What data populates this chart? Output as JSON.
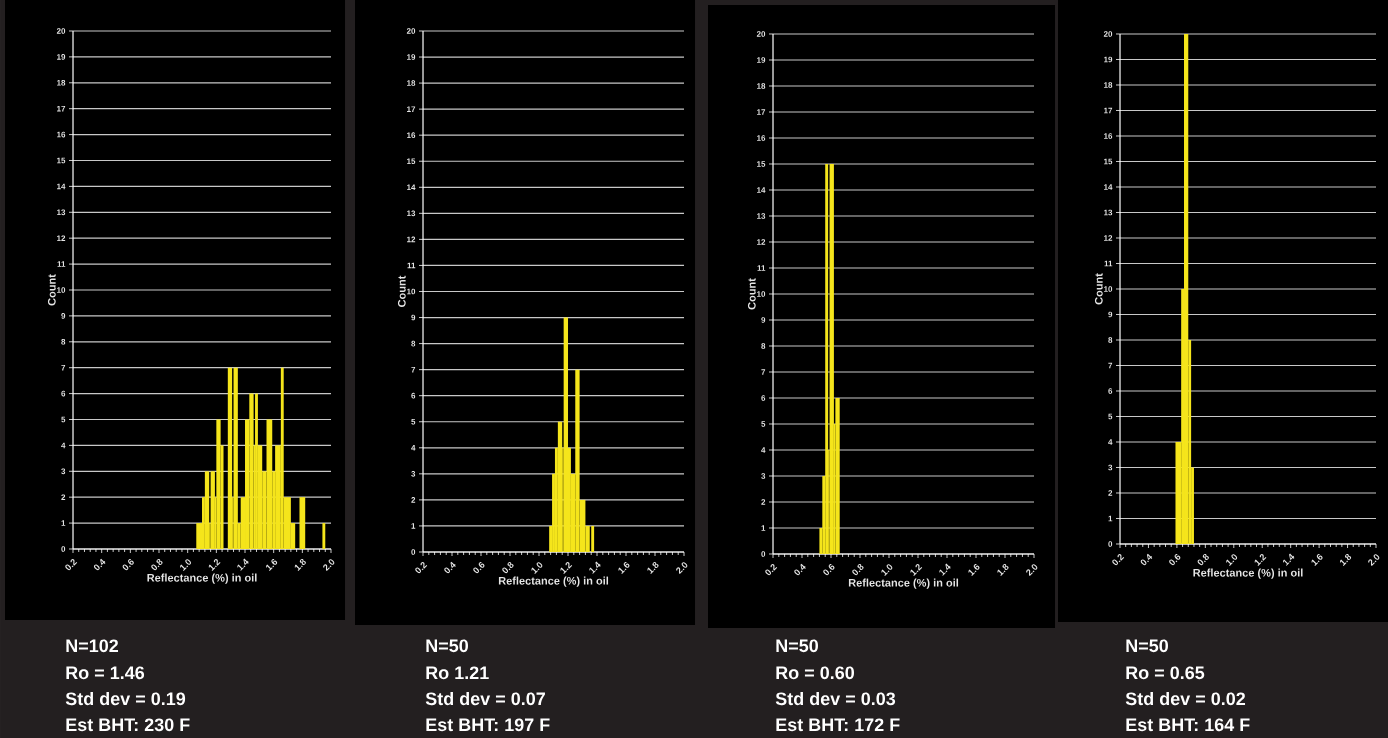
{
  "chart_data": [
    {
      "type": "histogram",
      "xlabel": "Reflectance (%) in oil",
      "ylabel": "Count",
      "color": "#f5e51b",
      "grid": "y",
      "xlim": [
        0.2,
        2.0
      ],
      "ylim": [
        0,
        20
      ],
      "xticks": [
        {
          "value": 0.2,
          "label": "0.2"
        },
        {
          "value": 0.4,
          "label": "0.4"
        },
        {
          "value": 0.6,
          "label": "0.6"
        },
        {
          "value": 0.8,
          "label": "0.8"
        },
        {
          "value": 1.0,
          "label": "1.0"
        },
        {
          "value": 1.2,
          "label": "1.2"
        },
        {
          "value": 1.4,
          "label": "1.4"
        },
        {
          "value": 1.6,
          "label": "1.6"
        },
        {
          "value": 1.8,
          "label": "1.8"
        },
        {
          "value": 2.0,
          "label": "2.0"
        }
      ],
      "yticks": [
        0,
        1,
        2,
        3,
        4,
        5,
        6,
        7,
        8,
        9,
        10,
        11,
        12,
        13,
        14,
        15,
        16,
        17,
        18,
        19,
        20
      ],
      "bins": [
        1.06,
        1.1,
        1.12,
        1.15,
        1.16,
        1.19,
        1.2,
        1.23,
        1.25,
        1.28,
        1.31,
        1.32,
        1.35,
        1.37,
        1.4,
        1.43,
        1.46,
        1.47,
        1.49,
        1.52,
        1.55,
        1.59,
        1.61,
        1.65,
        1.67,
        1.72,
        1.75,
        1.78,
        1.82,
        1.94,
        1.96
      ],
      "values": [
        1,
        2,
        3,
        1,
        3,
        2,
        5,
        4,
        0,
        7,
        2,
        7,
        1,
        2,
        5,
        6,
        4,
        6,
        4,
        3,
        5,
        3,
        4,
        7,
        2,
        1,
        0,
        2,
        0,
        1
      ],
      "annotations": [
        "N=102",
        "Ro = 1.46",
        "Std dev = 0.19",
        "Est BHT: 230 F"
      ]
    },
    {
      "type": "histogram",
      "xlabel": "Reflectance (%) in oil",
      "ylabel": "Count",
      "color": "#f5e51b",
      "grid": "y",
      "xlim": [
        0.2,
        2.0
      ],
      "ylim": [
        0,
        20
      ],
      "xticks": [
        {
          "value": 0.2,
          "label": "0.2"
        },
        {
          "value": 0.4,
          "label": "0.4"
        },
        {
          "value": 0.6,
          "label": "0.6"
        },
        {
          "value": 0.8,
          "label": "0.8"
        },
        {
          "value": 1.0,
          "label": "1.0"
        },
        {
          "value": 1.2,
          "label": "1.2"
        },
        {
          "value": 1.4,
          "label": "1.4"
        },
        {
          "value": 1.6,
          "label": "1.6"
        },
        {
          "value": 1.8,
          "label": "1.8"
        },
        {
          "value": 2.0,
          "label": "2.0"
        }
      ],
      "yticks": [
        0,
        1,
        2,
        3,
        4,
        5,
        6,
        7,
        8,
        9,
        10,
        11,
        12,
        13,
        14,
        15,
        16,
        17,
        18,
        19,
        20
      ],
      "bins": [
        1.07,
        1.09,
        1.11,
        1.13,
        1.16,
        1.17,
        1.2,
        1.22,
        1.25,
        1.28,
        1.32,
        1.35,
        1.36,
        1.38
      ],
      "values": [
        1,
        3,
        4,
        5,
        4,
        9,
        4,
        3,
        7,
        2,
        1,
        0,
        1
      ],
      "annotations": [
        "N=50",
        "Ro 1.21",
        "Std dev = 0.07",
        "Est BHT: 197 F"
      ]
    },
    {
      "type": "histogram",
      "xlabel": "Reflectance (%) in oil",
      "ylabel": "Count",
      "color": "#f5e51b",
      "grid": "y",
      "xlim": [
        0.2,
        2.0
      ],
      "ylim": [
        0,
        20
      ],
      "xticks": [
        {
          "value": 0.2,
          "label": "0.2"
        },
        {
          "value": 0.4,
          "label": "0.4"
        },
        {
          "value": 0.6,
          "label": "0.6"
        },
        {
          "value": 0.8,
          "label": "0.8"
        },
        {
          "value": 1.0,
          "label": "1.0"
        },
        {
          "value": 1.2,
          "label": "1.2"
        },
        {
          "value": 1.4,
          "label": "1.4"
        },
        {
          "value": 1.6,
          "label": "1.6"
        },
        {
          "value": 1.8,
          "label": "1.8"
        },
        {
          "value": 2.0,
          "label": "2.0"
        }
      ],
      "yticks": [
        0,
        1,
        2,
        3,
        4,
        5,
        6,
        7,
        8,
        9,
        10,
        11,
        12,
        13,
        14,
        15,
        16,
        17,
        18,
        19,
        20
      ],
      "bins": [
        0.52,
        0.54,
        0.56,
        0.58,
        0.59,
        0.62,
        0.63,
        0.66
      ],
      "values": [
        1,
        3,
        15,
        4,
        15,
        5,
        6
      ],
      "annotations": [
        "N=50",
        "Ro = 0.60",
        "Std dev = 0.03",
        "Est BHT: 172 F"
      ]
    },
    {
      "type": "histogram",
      "xlabel": "Reflectance (%) in oil",
      "ylabel": "Count",
      "color": "#f5e51b",
      "grid": "y",
      "xlim": [
        0.2,
        2.0
      ],
      "ylim": [
        0,
        20
      ],
      "xticks": [
        {
          "value": 0.2,
          "label": "0.2"
        },
        {
          "value": 0.4,
          "label": "0.4"
        },
        {
          "value": 0.6,
          "label": "0.6"
        },
        {
          "value": 0.8,
          "label": "0.8"
        },
        {
          "value": 1.0,
          "label": "1.0"
        },
        {
          "value": 1.2,
          "label": "1.2"
        },
        {
          "value": 1.4,
          "label": "1.4"
        },
        {
          "value": 1.6,
          "label": "1.6"
        },
        {
          "value": 1.8,
          "label": "1.8"
        },
        {
          "value": 2.0,
          "label": "2.0"
        }
      ],
      "yticks": [
        0,
        1,
        2,
        3,
        4,
        5,
        6,
        7,
        8,
        9,
        10,
        11,
        12,
        13,
        14,
        15,
        16,
        17,
        18,
        19,
        20
      ],
      "bins": [
        0.59,
        0.63,
        0.65,
        0.68,
        0.7,
        0.72
      ],
      "values": [
        4,
        10,
        20,
        8,
        3
      ],
      "annotations": [
        "N=50",
        "Ro = 0.65",
        "Std dev = 0.02",
        "Est BHT: 164 F"
      ]
    }
  ]
}
